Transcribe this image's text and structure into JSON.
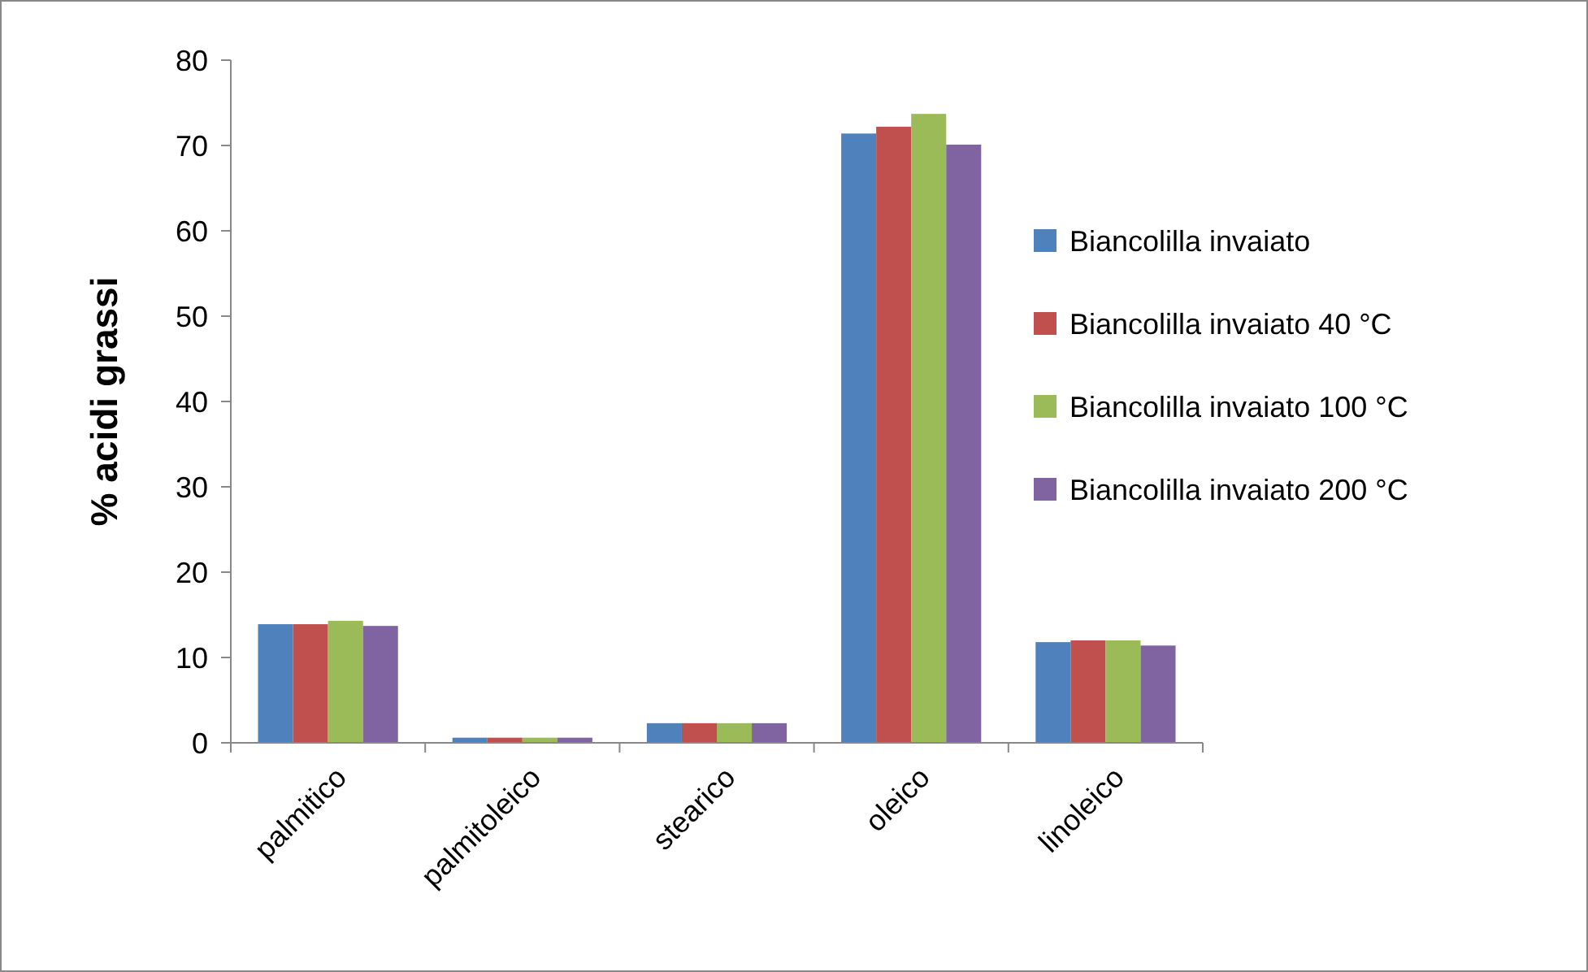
{
  "chart_data": {
    "type": "bar",
    "ylabel": "% acidi grassi",
    "categories": [
      "palmitico",
      "palmitoleico",
      "stearico",
      "oleico",
      "linoleico"
    ],
    "series": [
      {
        "name": "Biancolilla invaiato",
        "color": "#4f81bd",
        "values": [
          13.9,
          0.6,
          2.3,
          71.4,
          11.8
        ]
      },
      {
        "name": "Biancolilla invaiato 40 °C",
        "color": "#c0504d",
        "values": [
          13.9,
          0.6,
          2.3,
          72.2,
          12.0
        ]
      },
      {
        "name": "Biancolilla invaiato 100 °C",
        "color": "#9bbb59",
        "values": [
          14.3,
          0.6,
          2.3,
          73.7,
          12.0
        ]
      },
      {
        "name": "Biancolilla invaiato 200 °C",
        "color": "#8064a2",
        "values": [
          13.7,
          0.6,
          2.3,
          70.1,
          11.4
        ]
      }
    ],
    "ylim": [
      0,
      80
    ],
    "yticks": [
      0,
      10,
      20,
      30,
      40,
      50,
      60,
      70,
      80
    ],
    "grid": false,
    "legend": "right"
  }
}
